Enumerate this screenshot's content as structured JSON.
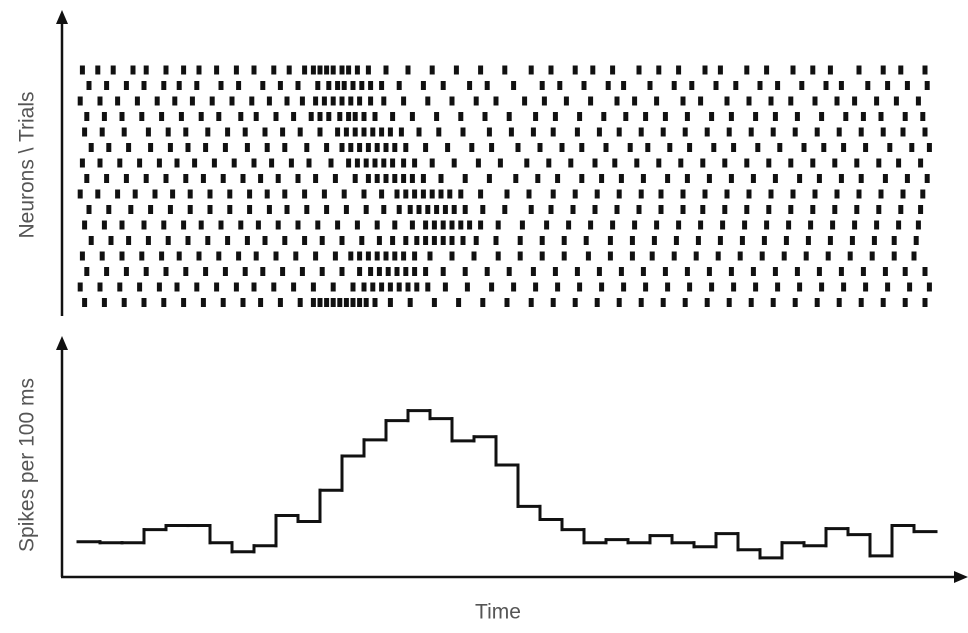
{
  "chart_data": [
    {
      "type": "raster",
      "ylabel": "Neurons \\ Trials",
      "xlim": [
        0,
        39
      ],
      "color": "#111111",
      "rows": [
        [
          0.2,
          0.9,
          1.6,
          2.5,
          3.1,
          4.0,
          4.8,
          5.5,
          6.3,
          7.2,
          8.0,
          8.9,
          9.6,
          10.3,
          10.7,
          11.0,
          11.3,
          11.6,
          12.0,
          12.3,
          12.7,
          13.2,
          14.0,
          15.0,
          16.1,
          17.2,
          18.3,
          19.4,
          20.6,
          21.5,
          22.6,
          23.4,
          24.3,
          25.5,
          26.4,
          27.3,
          28.5,
          29.2,
          30.4,
          31.3,
          32.5,
          33.4,
          34.2,
          35.5,
          36.6,
          37.4,
          38.5
        ],
        [
          0.5,
          1.3,
          2.2,
          3.0,
          3.9,
          4.6,
          5.4,
          6.5,
          7.3,
          8.4,
          9.2,
          10.0,
          10.9,
          11.4,
          11.8,
          12.1,
          12.5,
          12.9,
          13.3,
          13.8,
          14.6,
          15.7,
          16.6,
          17.8,
          18.6,
          19.8,
          21.1,
          21.9,
          23.0,
          24.1,
          24.8,
          26.0,
          27.1,
          27.9,
          29.0,
          29.9,
          31.0,
          31.8,
          32.9,
          34.0,
          34.7,
          35.9,
          36.8,
          37.7,
          38.6
        ],
        [
          0.1,
          1.0,
          1.8,
          2.7,
          3.6,
          4.4,
          5.2,
          6.1,
          7.0,
          7.9,
          8.7,
          9.5,
          10.2,
          10.8,
          11.2,
          11.6,
          12.0,
          12.4,
          12.8,
          13.3,
          13.9,
          14.8,
          15.9,
          17.0,
          18.1,
          19.0,
          20.3,
          21.2,
          22.2,
          23.3,
          24.5,
          25.3,
          26.3,
          27.5,
          28.3,
          29.5,
          30.5,
          31.5,
          32.4,
          33.5,
          34.5,
          35.3,
          36.3,
          37.2,
          38.2
        ],
        [
          0.4,
          1.2,
          2.0,
          2.9,
          3.8,
          4.7,
          5.6,
          6.4,
          7.4,
          8.1,
          9.0,
          9.8,
          10.6,
          11.0,
          11.4,
          11.9,
          12.3,
          12.6,
          13.0,
          13.5,
          14.3,
          15.2,
          16.3,
          17.4,
          18.5,
          19.6,
          20.8,
          21.7,
          22.8,
          23.9,
          24.9,
          25.8,
          26.7,
          27.7,
          28.8,
          29.7,
          30.8,
          31.7,
          32.7,
          33.8,
          34.9,
          35.7,
          36.5,
          37.6,
          38.4
        ],
        [
          0.3,
          1.1,
          2.1,
          3.2,
          4.1,
          4.9,
          5.9,
          6.8,
          7.6,
          8.5,
          9.3,
          10.1,
          11.0,
          11.8,
          12.2,
          12.6,
          13.0,
          13.4,
          13.8,
          14.2,
          14.7,
          15.5,
          16.4,
          17.5,
          18.7,
          19.7,
          20.7,
          21.6,
          22.7,
          23.7,
          24.6,
          25.6,
          26.6,
          27.6,
          28.6,
          29.6,
          30.6,
          31.6,
          32.6,
          33.6,
          34.6,
          35.6,
          36.6,
          37.5,
          38.5
        ],
        [
          0.6,
          1.4,
          2.3,
          3.3,
          4.2,
          5.0,
          5.8,
          6.7,
          7.7,
          8.6,
          9.4,
          10.4,
          11.3,
          12.0,
          12.4,
          12.8,
          13.2,
          13.6,
          14.0,
          14.4,
          14.9,
          15.8,
          16.8,
          17.9,
          18.8,
          20.0,
          21.0,
          22.0,
          22.9,
          24.0,
          25.1,
          25.9,
          26.9,
          27.8,
          28.9,
          29.8,
          30.9,
          31.9,
          33.0,
          33.9,
          34.8,
          35.8,
          36.9,
          37.9,
          38.7
        ],
        [
          0.2,
          1.0,
          1.9,
          2.8,
          3.7,
          4.5,
          5.3,
          6.2,
          7.1,
          8.0,
          8.8,
          9.7,
          10.5,
          11.5,
          12.3,
          12.7,
          13.1,
          13.5,
          13.9,
          14.3,
          14.8,
          15.3,
          16.1,
          17.1,
          18.2,
          19.2,
          20.4,
          21.4,
          22.4,
          23.5,
          24.4,
          25.4,
          26.4,
          27.4,
          28.4,
          29.4,
          30.4,
          31.4,
          32.4,
          33.4,
          34.4,
          35.4,
          36.4,
          37.3,
          38.3
        ],
        [
          0.4,
          1.3,
          2.2,
          3.1,
          4.0,
          4.9,
          5.7,
          6.6,
          7.5,
          8.3,
          9.1,
          10.0,
          10.8,
          11.7,
          12.6,
          13.2,
          13.6,
          14.0,
          14.4,
          14.8,
          15.2,
          15.7,
          16.5,
          17.6,
          18.7,
          19.9,
          20.9,
          21.8,
          22.9,
          23.8,
          24.7,
          25.7,
          26.8,
          27.7,
          28.7,
          29.7,
          30.7,
          31.7,
          32.8,
          33.7,
          34.7,
          35.6,
          36.7,
          37.7,
          38.6
        ],
        [
          0.1,
          0.9,
          1.8,
          2.6,
          3.5,
          4.3,
          5.1,
          6.0,
          6.9,
          7.8,
          8.6,
          9.4,
          10.3,
          11.2,
          12.1,
          13.0,
          13.8,
          14.5,
          14.9,
          15.3,
          15.7,
          16.1,
          16.5,
          16.9,
          17.4,
          18.3,
          19.5,
          20.5,
          21.6,
          22.6,
          23.6,
          24.6,
          25.6,
          26.5,
          27.5,
          28.5,
          29.5,
          30.5,
          31.5,
          32.5,
          33.5,
          34.5,
          35.5,
          36.5,
          37.5,
          38.4
        ],
        [
          0.5,
          1.4,
          2.4,
          3.3,
          4.2,
          5.1,
          6.0,
          6.9,
          7.8,
          8.7,
          9.5,
          10.4,
          11.3,
          12.2,
          13.1,
          13.9,
          14.6,
          15.1,
          15.5,
          15.9,
          16.3,
          16.7,
          17.1,
          17.6,
          18.4,
          19.4,
          20.6,
          21.5,
          22.5,
          23.5,
          24.5,
          25.5,
          26.5,
          27.5,
          28.4,
          29.4,
          30.4,
          31.4,
          32.4,
          33.4,
          34.4,
          35.4,
          36.4,
          37.4,
          38.3
        ],
        [
          0.3,
          1.2,
          2.0,
          3.0,
          3.9,
          4.8,
          5.6,
          6.5,
          7.4,
          8.2,
          9.1,
          10.0,
          10.9,
          11.8,
          12.7,
          13.6,
          14.4,
          15.2,
          15.8,
          16.2,
          16.6,
          17.0,
          17.4,
          17.8,
          18.3,
          19.1,
          20.2,
          21.3,
          22.3,
          23.3,
          24.3,
          25.3,
          26.3,
          27.3,
          28.3,
          29.3,
          30.3,
          31.3,
          32.3,
          33.3,
          34.3,
          35.3,
          36.3,
          37.3,
          38.2
        ],
        [
          0.6,
          1.5,
          2.3,
          3.2,
          4.1,
          5.0,
          5.9,
          6.8,
          7.7,
          8.5,
          9.4,
          10.3,
          11.1,
          12.0,
          12.9,
          13.7,
          14.3,
          14.9,
          15.4,
          15.8,
          16.2,
          16.6,
          17.0,
          17.5,
          18.1,
          19.0,
          20.1,
          21.1,
          22.1,
          23.1,
          24.2,
          25.2,
          26.2,
          27.2,
          28.2,
          29.2,
          30.2,
          31.2,
          32.2,
          33.2,
          34.2,
          35.2,
          36.2,
          37.1,
          38.1
        ],
        [
          0.2,
          1.1,
          2.0,
          2.9,
          3.8,
          4.6,
          5.5,
          6.4,
          7.3,
          8.1,
          9.0,
          9.9,
          10.8,
          11.7,
          12.4,
          12.8,
          13.2,
          13.6,
          14.0,
          14.4,
          14.8,
          15.3,
          16.0,
          17.0,
          18.0,
          19.1,
          20.1,
          21.1,
          22.1,
          23.2,
          24.2,
          25.2,
          26.1,
          27.1,
          28.1,
          29.1,
          30.1,
          31.1,
          32.1,
          33.1,
          34.1,
          35.1,
          36.1,
          37.1,
          38.0
        ],
        [
          0.4,
          1.3,
          2.2,
          3.1,
          4.0,
          4.9,
          5.8,
          6.7,
          7.6,
          8.4,
          9.3,
          10.2,
          11.1,
          12.0,
          12.8,
          13.3,
          13.7,
          14.1,
          14.5,
          14.9,
          15.3,
          15.8,
          16.6,
          17.6,
          18.6,
          19.6,
          20.7,
          21.7,
          22.7,
          23.7,
          24.7,
          25.7,
          26.7,
          27.7,
          28.7,
          29.7,
          30.7,
          31.7,
          32.7,
          33.7,
          34.7,
          35.7,
          36.7,
          37.6,
          38.5
        ],
        [
          0.1,
          1.0,
          1.9,
          2.8,
          3.7,
          4.5,
          5.4,
          6.3,
          7.2,
          8.0,
          8.9,
          9.8,
          10.7,
          11.6,
          12.5,
          13.0,
          13.4,
          13.8,
          14.2,
          14.6,
          15.0,
          15.4,
          15.9,
          16.7,
          17.7,
          18.8,
          19.8,
          20.8,
          21.8,
          22.8,
          23.8,
          24.8,
          25.8,
          26.8,
          27.8,
          28.8,
          29.8,
          30.8,
          31.8,
          32.8,
          33.8,
          34.8,
          35.8,
          36.8,
          37.8,
          38.7
        ],
        [
          0.3,
          1.2,
          2.1,
          3.0,
          3.9,
          4.8,
          5.7,
          6.6,
          7.5,
          8.3,
          9.2,
          10.1,
          10.7,
          11.0,
          11.3,
          11.6,
          11.9,
          12.2,
          12.5,
          12.8,
          13.1,
          13.5,
          14.2,
          15.1,
          16.2,
          17.3,
          18.4,
          19.5,
          20.6,
          21.6,
          22.6,
          23.6,
          24.6,
          25.6,
          26.6,
          27.6,
          28.6,
          29.6,
          30.6,
          31.6,
          32.6,
          33.6,
          34.6,
          35.6,
          36.6,
          37.6,
          38.5
        ]
      ]
    },
    {
      "type": "histogram",
      "ylabel": "Spikes per 100 ms",
      "xlabel": "Time",
      "color": "#111111",
      "bins": [
        0,
        1,
        2,
        3,
        4,
        5,
        6,
        7,
        8,
        9,
        10,
        11,
        12,
        13,
        14,
        15,
        16,
        17,
        18,
        19,
        20,
        21,
        22,
        23,
        24,
        25,
        26,
        27,
        28,
        29,
        30,
        31,
        32,
        33,
        34,
        35,
        36,
        37,
        38,
        39
      ],
      "values": [
        3.5,
        3.4,
        3.4,
        4.7,
        5.1,
        5.1,
        3.4,
        2.5,
        3.1,
        6.1,
        5.5,
        8.6,
        12.0,
        13.6,
        15.5,
        16.5,
        15.7,
        13.5,
        13.9,
        11.1,
        7.0,
        5.7,
        4.7,
        3.4,
        3.7,
        3.4,
        4.1,
        3.4,
        3.0,
        4.3,
        2.7,
        1.9,
        3.4,
        3.1,
        4.8,
        4.2,
        2.1,
        5.1,
        4.5
      ],
      "xlim": [
        0,
        39
      ],
      "ylim": [
        0,
        23
      ]
    }
  ]
}
